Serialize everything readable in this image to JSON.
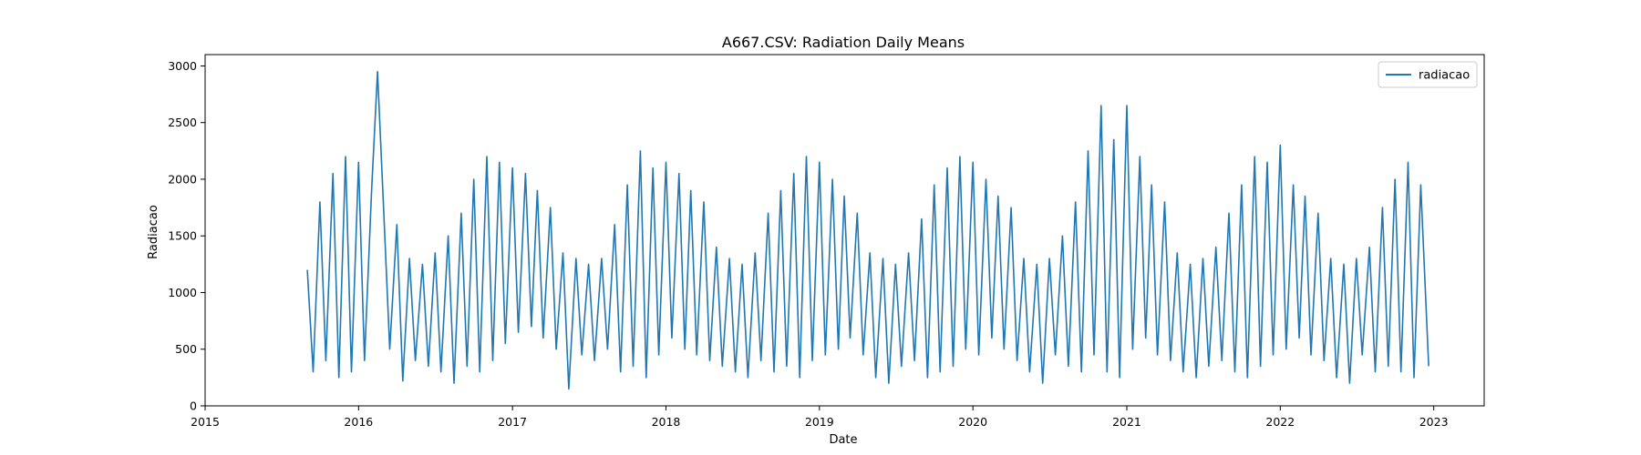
{
  "chart_data": {
    "type": "line",
    "title": "A667.CSV: Radiation Daily Means",
    "xlabel": "Date",
    "ylabel": "Radiacao",
    "xlim": [
      "2015-01-01",
      "2023-05-01"
    ],
    "ylim": [
      0,
      3100
    ],
    "x_ticks": [
      "2015",
      "2016",
      "2017",
      "2018",
      "2019",
      "2020",
      "2021",
      "2022",
      "2023"
    ],
    "y_ticks": [
      0,
      500,
      1000,
      1500,
      2000,
      2500,
      3000
    ],
    "legend_position": "top-right",
    "grid": false,
    "series": [
      {
        "name": "radiacao",
        "color": "#1f77b4",
        "x": [
          "2015-09-01",
          "2015-09-15",
          "2015-10-01",
          "2015-10-15",
          "2015-11-01",
          "2015-11-15",
          "2015-12-01",
          "2015-12-15",
          "2016-01-01",
          "2016-01-15",
          "2016-02-01",
          "2016-02-15",
          "2016-03-01",
          "2016-03-15",
          "2016-04-01",
          "2016-04-15",
          "2016-05-01",
          "2016-05-15",
          "2016-06-01",
          "2016-06-15",
          "2016-07-01",
          "2016-07-15",
          "2016-08-01",
          "2016-08-15",
          "2016-09-01",
          "2016-09-15",
          "2016-10-01",
          "2016-10-15",
          "2016-11-01",
          "2016-11-15",
          "2016-12-01",
          "2016-12-15",
          "2017-01-01",
          "2017-01-15",
          "2017-02-01",
          "2017-02-15",
          "2017-03-01",
          "2017-03-15",
          "2017-04-01",
          "2017-04-15",
          "2017-05-01",
          "2017-05-15",
          "2017-06-01",
          "2017-06-15",
          "2017-07-01",
          "2017-07-15",
          "2017-08-01",
          "2017-08-15",
          "2017-09-01",
          "2017-09-15",
          "2017-10-01",
          "2017-10-15",
          "2017-11-01",
          "2017-11-15",
          "2017-12-01",
          "2017-12-15",
          "2018-01-01",
          "2018-01-15",
          "2018-02-01",
          "2018-02-15",
          "2018-03-01",
          "2018-03-15",
          "2018-04-01",
          "2018-04-15",
          "2018-05-01",
          "2018-05-15",
          "2018-06-01",
          "2018-06-15",
          "2018-07-01",
          "2018-07-15",
          "2018-08-01",
          "2018-08-15",
          "2018-09-01",
          "2018-09-15",
          "2018-10-01",
          "2018-10-15",
          "2018-11-01",
          "2018-11-15",
          "2018-12-01",
          "2018-12-15",
          "2019-01-01",
          "2019-01-15",
          "2019-02-01",
          "2019-02-15",
          "2019-03-01",
          "2019-03-15",
          "2019-04-01",
          "2019-04-15",
          "2019-05-01",
          "2019-05-15",
          "2019-06-01",
          "2019-06-15",
          "2019-07-01",
          "2019-07-15",
          "2019-08-01",
          "2019-08-15",
          "2019-09-01",
          "2019-09-15",
          "2019-10-01",
          "2019-10-15",
          "2019-11-01",
          "2019-11-15",
          "2019-12-01",
          "2019-12-15",
          "2020-01-01",
          "2020-01-15",
          "2020-02-01",
          "2020-02-15",
          "2020-03-01",
          "2020-03-15",
          "2020-04-01",
          "2020-04-15",
          "2020-05-01",
          "2020-05-15",
          "2020-06-01",
          "2020-06-15",
          "2020-07-01",
          "2020-07-15",
          "2020-08-01",
          "2020-08-15",
          "2020-09-01",
          "2020-09-15",
          "2020-10-01",
          "2020-10-15",
          "2020-11-01",
          "2020-11-15",
          "2020-12-01",
          "2020-12-15",
          "2021-01-01",
          "2021-01-15",
          "2021-02-01",
          "2021-02-15",
          "2021-03-01",
          "2021-03-15",
          "2021-04-01",
          "2021-04-15",
          "2021-05-01",
          "2021-05-15",
          "2021-06-01",
          "2021-06-15",
          "2021-07-01",
          "2021-07-15",
          "2021-08-01",
          "2021-08-15",
          "2021-09-01",
          "2021-09-15",
          "2021-10-01",
          "2021-10-15",
          "2021-11-01",
          "2021-11-15",
          "2021-12-01",
          "2021-12-15",
          "2022-01-01",
          "2022-01-15",
          "2022-02-01",
          "2022-02-15",
          "2022-03-01",
          "2022-03-15",
          "2022-04-01",
          "2022-04-15",
          "2022-05-01",
          "2022-05-15",
          "2022-06-01",
          "2022-06-15",
          "2022-07-01",
          "2022-07-15",
          "2022-08-01",
          "2022-08-15",
          "2022-09-01",
          "2022-09-15",
          "2022-10-01",
          "2022-10-15",
          "2022-11-01",
          "2022-11-15",
          "2022-12-01",
          "2022-12-20"
        ],
        "y": [
          1200,
          300,
          1800,
          400,
          2050,
          250,
          2200,
          300,
          2150,
          400,
          1900,
          2950,
          1700,
          500,
          1600,
          220,
          1300,
          400,
          1250,
          350,
          1350,
          300,
          1500,
          200,
          1700,
          350,
          2000,
          300,
          2200,
          400,
          2150,
          550,
          2100,
          650,
          2050,
          700,
          1900,
          600,
          1750,
          500,
          1350,
          150,
          1300,
          450,
          1250,
          400,
          1300,
          500,
          1600,
          300,
          1950,
          350,
          2250,
          250,
          2100,
          450,
          2150,
          600,
          2050,
          500,
          1900,
          450,
          1800,
          400,
          1400,
          350,
          1300,
          300,
          1250,
          250,
          1350,
          400,
          1700,
          300,
          1900,
          350,
          2050,
          250,
          2200,
          400,
          2150,
          450,
          2000,
          500,
          1850,
          600,
          1700,
          450,
          1350,
          250,
          1300,
          200,
          1250,
          350,
          1350,
          400,
          1650,
          250,
          1950,
          300,
          2100,
          350,
          2200,
          500,
          2150,
          450,
          2000,
          600,
          1850,
          500,
          1750,
          400,
          1300,
          300,
          1250,
          200,
          1300,
          450,
          1500,
          350,
          1800,
          300,
          2250,
          450,
          2650,
          300,
          2350,
          250,
          2650,
          500,
          2200,
          600,
          1950,
          450,
          1800,
          400,
          1350,
          300,
          1250,
          250,
          1300,
          350,
          1400,
          400,
          1700,
          300,
          1950,
          250,
          2200,
          350,
          2150,
          450,
          2300,
          500,
          1950,
          600,
          1850,
          450,
          1700,
          400,
          1300,
          250,
          1250,
          200,
          1300,
          450,
          1400,
          300,
          1750,
          350,
          2000,
          300,
          2150,
          250,
          1950,
          350
        ]
      }
    ]
  }
}
